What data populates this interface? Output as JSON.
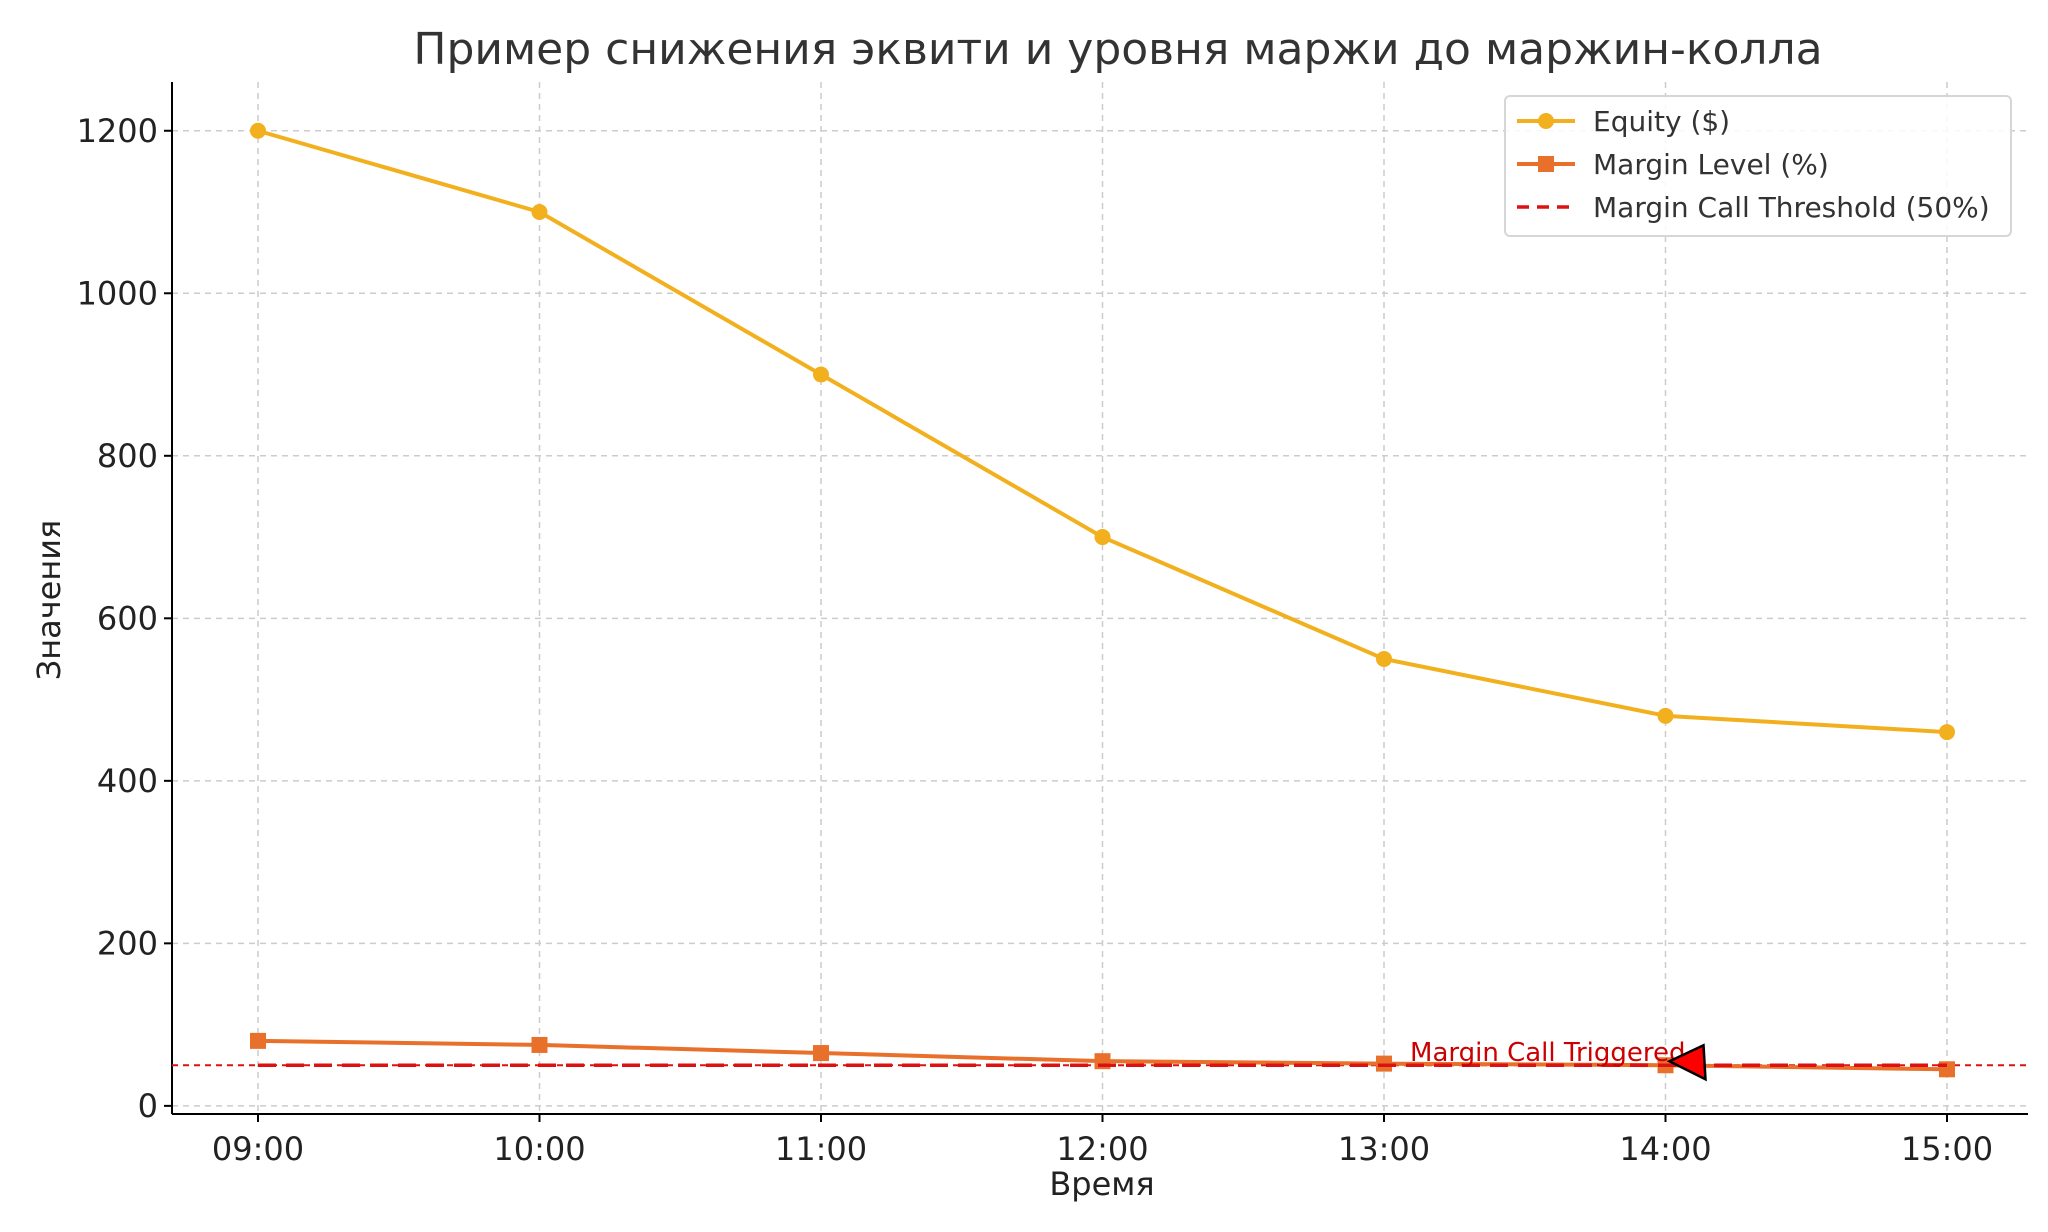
{
  "chart_data": {
    "type": "line",
    "title": "Пример снижения эквити и уровня маржи до маржин-колла",
    "xlabel": "Время",
    "ylabel": "Значения",
    "categories": [
      "09:00",
      "10:00",
      "11:00",
      "12:00",
      "13:00",
      "14:00",
      "15:00"
    ],
    "ylim": [
      -10,
      1260
    ],
    "yticks": [
      0,
      200,
      400,
      600,
      800,
      1000,
      1200
    ],
    "grid": true,
    "legend_position": "top-right",
    "series": [
      {
        "name": "Equity ($)",
        "values": [
          1200,
          1100,
          900,
          700,
          550,
          480,
          460
        ],
        "color": "#f2b01e",
        "marker": "circle",
        "line_style": "solid"
      },
      {
        "name": "Margin Level (%)",
        "values": [
          80,
          75,
          65,
          55,
          52,
          50,
          45
        ],
        "color": "#e8702a",
        "marker": "square",
        "line_style": "solid"
      }
    ],
    "threshold": {
      "name": "Margin Call Threshold (50%)",
      "value": 50,
      "color": "#dd1111",
      "line_style": "dashed"
    },
    "annotation": {
      "text": "Margin Call Triggered",
      "x": "14:00",
      "y": 50,
      "color": "#cc0000",
      "arrow_color": "#ff0000"
    }
  }
}
